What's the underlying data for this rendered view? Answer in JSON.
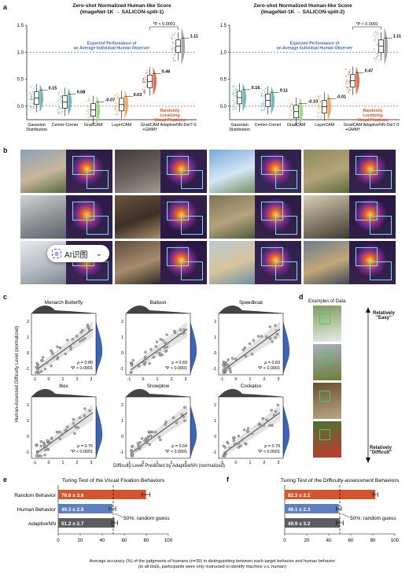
{
  "panel_a": {
    "label": "a",
    "left_title": "Zero-shot Normalized Human-like Score\n(ImageNet-1K → SALICON-split-1)",
    "right_title": "Zero-shot Normalized Human-like Score\n(ImageNet-1K → SALICON-split-2)",
    "ref_line_top": "Expected Performance of\nan Average Individual Human Observer",
    "ref_line_bottom": "Randomly\nLocalizing\nVisual Fixations",
    "pvalue": "*P < 0.0001",
    "colors": [
      "#5fb3b3",
      "#5fb3b3",
      "#9bcf7d",
      "#f2a25c",
      "#e2603a",
      "#9a9a9a"
    ]
  },
  "chart_data": [
    {
      "type": "box",
      "title": "Zero-shot Normalized Human-like Score (ImageNet-1K → SALICON-split-1)",
      "categories": [
        "Gaussian Distribution",
        "Center-Corner",
        "GradCAM",
        "LayerCAM",
        "GradCAM +GMM†",
        "AdaptiveNN-DeiT-S"
      ],
      "values": [
        0.15,
        0.08,
        -0.07,
        0.03,
        0.46,
        1.11
      ],
      "ylim": [
        -0.25,
        1.5
      ],
      "reference_lines": [
        1.0,
        0.0
      ]
    },
    {
      "type": "box",
      "title": "Zero-shot Normalized Human-like Score (ImageNet-1K → SALICON-split-2)",
      "categories": [
        "Gaussian Distribution",
        "Center-Corner",
        "GradCAM",
        "LayerCAM",
        "GradCAM +GMM†",
        "AdaptiveNN-DeiT-S"
      ],
      "values": [
        0.16,
        0.11,
        -0.1,
        -0.01,
        0.47,
        1.11
      ],
      "ylim": [
        -0.25,
        1.5
      ],
      "reference_lines": [
        1.0,
        0.0
      ]
    },
    {
      "type": "scatter",
      "title": "Monarch Butterfly",
      "stats": [
        "ρ = 0.80",
        "*P < 0.0001"
      ]
    },
    {
      "type": "scatter",
      "title": "Balloon",
      "stats": [
        "ρ = 0.69",
        "*P < 0.0001"
      ]
    },
    {
      "type": "scatter",
      "title": "Speedboat",
      "stats": [
        "ρ = 0.63",
        "*P < 0.0001"
      ]
    },
    {
      "type": "scatter",
      "title": "Ibex",
      "stats": [
        "ρ = 0.76",
        "*P < 0.0001"
      ]
    },
    {
      "type": "scatter",
      "title": "Snowplow",
      "stats": [
        "ρ = 0.54",
        "*P < 0.0001"
      ]
    },
    {
      "type": "scatter",
      "title": "Cockatoo",
      "stats": [
        "ρ = 0.79",
        "*P < 0.0001"
      ]
    },
    {
      "type": "bar",
      "title": "Turing Test of the Visual Fixation Behaviors",
      "categories": [
        "Random Behavior",
        "Human Behavior",
        "AdaptiveNN"
      ],
      "values": [
        79.8,
        49.3,
        51.2
      ],
      "errors": [
        3.6,
        2.9,
        2.7
      ],
      "xlim": [
        0,
        100
      ]
    },
    {
      "type": "bar",
      "title": "Turing Test of the Difficulty-assessment Behaviors",
      "categories": [
        "Random Behavior",
        "Human Behavior",
        "AdaptiveNN"
      ],
      "values": [
        82.3,
        49.1,
        49.9
      ],
      "errors": [
        2.2,
        2.3,
        3.2
      ],
      "xlim": [
        0,
        100
      ]
    }
  ],
  "panel_b": {
    "label": "b"
  },
  "overlay": {
    "ai_label": "AI识图",
    "ai_icon": "ai-scan-icon",
    "chevron": "chevron-down-icon"
  },
  "panel_c": {
    "label": "c",
    "ylabel": "Human-Assessed Difficulty Level (normalized)",
    "xlabel": "Difficulty Level Predicted by AdaptiveNN (normalized)"
  },
  "panel_d": {
    "label": "d",
    "title": "Examples of Data",
    "easy": "Relatively\n\"Easy\"",
    "difficult": "Relatively\n\"Difficult\""
  },
  "panel_e": {
    "label": "e",
    "guess": "50%: random guess"
  },
  "panel_f": {
    "label": "f",
    "guess": "50%: random guess"
  },
  "bottom_caption": "Average accuracy (%) of the judgments of humans (n=39) in distinguishing between each target behavior and human behavior\n(in all trials, participants were only instructed to identify machine v.s. human)",
  "bar_colors": [
    "#d2552e",
    "#5b7fbf",
    "#5d5d5d"
  ]
}
